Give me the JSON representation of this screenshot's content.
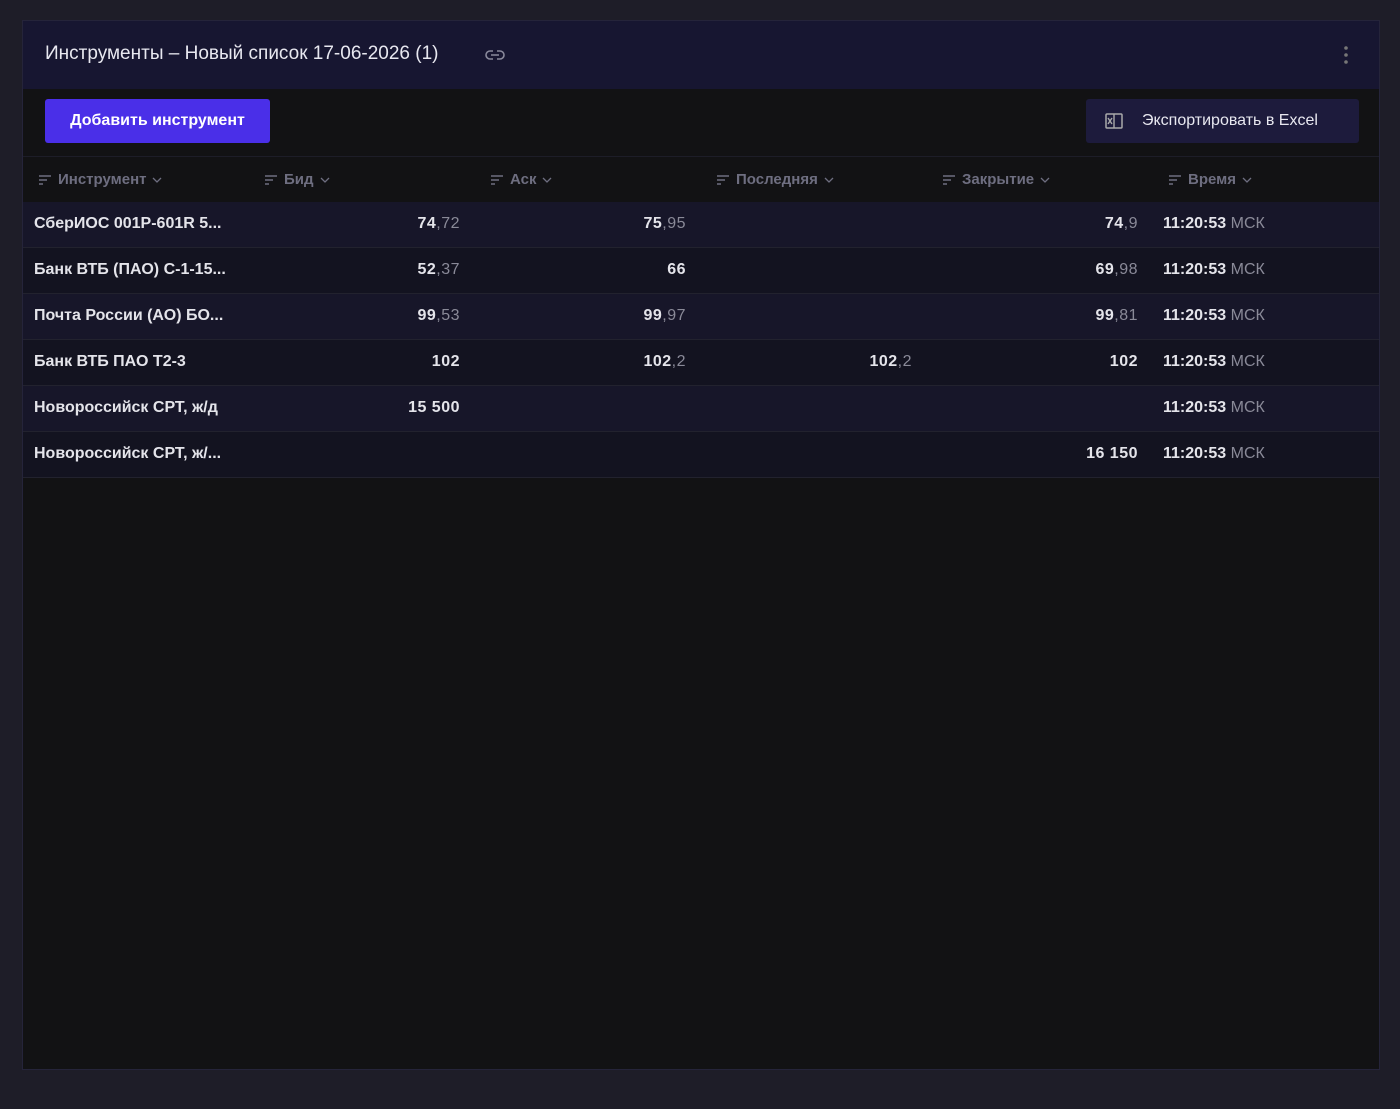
{
  "header": {
    "title": "Инструменты – Новый список 17-06-2026 (1)"
  },
  "toolbar": {
    "add_button": "Добавить инструмент",
    "export_button": "Экспортировать в Excel"
  },
  "table": {
    "columns": [
      "Инструмент",
      "Бид",
      "Аск",
      "Последняя",
      "Закрытие",
      "Время"
    ],
    "rows": [
      {
        "name": "СберИОС 001P-601R 5...",
        "bid": {
          "int": "74",
          "frac": ",72"
        },
        "ask": {
          "int": "75",
          "frac": ",95"
        },
        "last": null,
        "close": {
          "int": "74",
          "frac": ",9"
        },
        "time": {
          "clock": "11:20:53",
          "zone": "МСК"
        }
      },
      {
        "name": "Банк ВТБ (ПАО) С-1-15...",
        "bid": {
          "int": "52",
          "frac": ",37"
        },
        "ask": {
          "int": "66"
        },
        "last": null,
        "close": {
          "int": "69",
          "frac": ",98"
        },
        "time": {
          "clock": "11:20:53",
          "zone": "МСК"
        }
      },
      {
        "name": "Почта России (АО) БО...",
        "bid": {
          "int": "99",
          "frac": ",53"
        },
        "ask": {
          "int": "99",
          "frac": ",97"
        },
        "last": null,
        "close": {
          "int": "99",
          "frac": ",81"
        },
        "time": {
          "clock": "11:20:53",
          "zone": "МСК"
        }
      },
      {
        "name": "Банк ВТБ ПАО Т2-3",
        "bid": {
          "int": "102"
        },
        "ask": {
          "int": "102",
          "frac": ",2"
        },
        "last": {
          "int": "102",
          "frac": ",2"
        },
        "close": {
          "int": "102"
        },
        "time": {
          "clock": "11:20:53",
          "zone": "МСК"
        }
      },
      {
        "name": "Новороссийск СРТ, ж/д",
        "bid": {
          "int": "15 500"
        },
        "ask": null,
        "last": null,
        "close": null,
        "time": {
          "clock": "11:20:53",
          "zone": "МСК"
        }
      },
      {
        "name": "Новороссийск СРТ, ж/...",
        "bid": null,
        "ask": null,
        "last": null,
        "close": {
          "int": "16 150"
        },
        "time": {
          "clock": "11:20:53",
          "zone": "МСК"
        }
      }
    ]
  }
}
